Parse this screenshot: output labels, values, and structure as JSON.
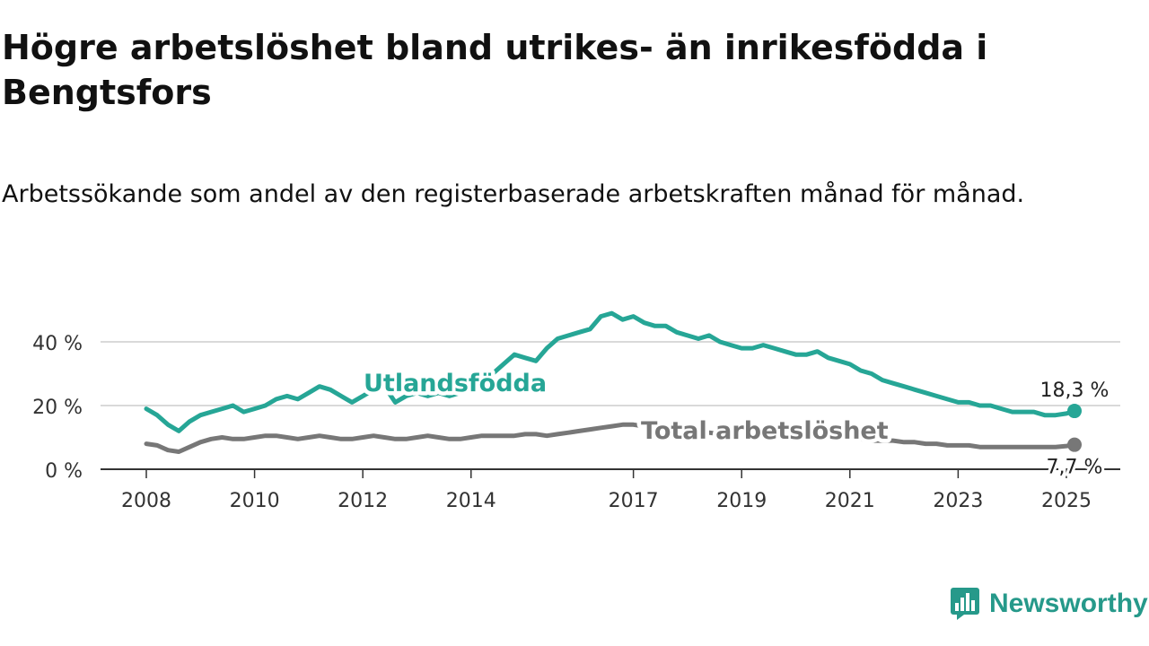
{
  "title": "Högre arbetslöshet bland utrikes- än inrikesfödda i Bengtsfors",
  "subtitle": "Arbetssökande som andel av den registerbaserade arbetskraften månad för månad.",
  "brand": {
    "name": "Newsworthy",
    "icon": "newsworthy-logo-icon"
  },
  "colors": {
    "foreign": "#26a696",
    "total": "#777777",
    "axis": "#333333",
    "grid": "#d9d9d9",
    "brand": "#26998a"
  },
  "chart_data": {
    "type": "line",
    "xlabel": "",
    "ylabel": "",
    "ylim": [
      0,
      55
    ],
    "grid": true,
    "legend": "inline labels",
    "x_tick_labels": [
      "2008",
      "2010",
      "2012",
      "2014",
      "2017",
      "2019",
      "2021",
      "2023",
      "2025"
    ],
    "y_ticks": [
      0,
      20,
      40
    ],
    "y_tick_labels": [
      "0 %",
      "20 %",
      "40 %"
    ],
    "series": [
      {
        "name": "Utlandsfödda",
        "end_label": "18,3 %",
        "x": [
          2008.0,
          2008.2,
          2008.4,
          2008.6,
          2008.8,
          2009.0,
          2009.2,
          2009.4,
          2009.6,
          2009.8,
          2010.0,
          2010.2,
          2010.4,
          2010.6,
          2010.8,
          2011.0,
          2011.2,
          2011.4,
          2011.6,
          2011.8,
          2012.0,
          2012.2,
          2012.4,
          2012.6,
          2012.8,
          2013.0,
          2013.2,
          2013.4,
          2013.6,
          2013.8,
          2014.0,
          2014.2,
          2014.4,
          2014.6,
          2014.8,
          2015.0,
          2015.2,
          2015.4,
          2015.6,
          2015.8,
          2016.0,
          2016.2,
          2016.4,
          2016.6,
          2016.8,
          2017.0,
          2017.2,
          2017.4,
          2017.6,
          2017.8,
          2018.0,
          2018.2,
          2018.4,
          2018.6,
          2018.8,
          2019.0,
          2019.2,
          2019.4,
          2019.6,
          2019.8,
          2020.0,
          2020.2,
          2020.4,
          2020.6,
          2020.8,
          2021.0,
          2021.2,
          2021.4,
          2021.6,
          2021.8,
          2022.0,
          2022.2,
          2022.4,
          2022.6,
          2022.8,
          2023.0,
          2023.2,
          2023.4,
          2023.6,
          2023.8,
          2024.0,
          2024.2,
          2024.4,
          2024.6,
          2024.8,
          2025.0,
          2025.15
        ],
        "values": [
          19,
          17,
          14,
          12,
          15,
          17,
          18,
          19,
          20,
          18,
          19,
          20,
          22,
          23,
          22,
          24,
          26,
          25,
          23,
          21,
          23,
          25,
          26,
          21,
          23,
          24,
          23,
          24,
          23,
          24,
          25,
          27,
          30,
          33,
          36,
          35,
          34,
          38,
          41,
          42,
          43,
          44,
          48,
          49,
          47,
          48,
          46,
          45,
          45,
          43,
          42,
          41,
          42,
          40,
          39,
          38,
          38,
          39,
          38,
          37,
          36,
          36,
          37,
          35,
          34,
          33,
          31,
          30,
          28,
          27,
          26,
          25,
          24,
          23,
          22,
          21,
          21,
          20,
          20,
          19,
          18,
          18,
          18,
          17,
          17,
          17.5,
          18.3
        ]
      },
      {
        "name": "Total arbetslöshet",
        "end_label": "7,7 %",
        "x": [
          2008.0,
          2008.2,
          2008.4,
          2008.6,
          2008.8,
          2009.0,
          2009.2,
          2009.4,
          2009.6,
          2009.8,
          2010.0,
          2010.2,
          2010.4,
          2010.6,
          2010.8,
          2011.0,
          2011.2,
          2011.4,
          2011.6,
          2011.8,
          2012.0,
          2012.2,
          2012.4,
          2012.6,
          2012.8,
          2013.0,
          2013.2,
          2013.4,
          2013.6,
          2013.8,
          2014.0,
          2014.2,
          2014.4,
          2014.6,
          2014.8,
          2015.0,
          2015.2,
          2015.4,
          2015.6,
          2015.8,
          2016.0,
          2016.2,
          2016.4,
          2016.6,
          2016.8,
          2017.0,
          2017.2,
          2017.4,
          2017.6,
          2017.8,
          2018.0,
          2018.2,
          2018.4,
          2018.6,
          2018.8,
          2019.0,
          2019.2,
          2019.4,
          2019.6,
          2019.8,
          2020.0,
          2020.2,
          2020.4,
          2020.6,
          2020.8,
          2021.0,
          2021.2,
          2021.4,
          2021.6,
          2021.8,
          2022.0,
          2022.2,
          2022.4,
          2022.6,
          2022.8,
          2023.0,
          2023.2,
          2023.4,
          2023.6,
          2023.8,
          2024.0,
          2024.2,
          2024.4,
          2024.6,
          2024.8,
          2025.0,
          2025.15
        ],
        "values": [
          8,
          7.5,
          6,
          5.5,
          7,
          8.5,
          9.5,
          10,
          9.5,
          9.5,
          10,
          10.5,
          10.5,
          10,
          9.5,
          10,
          10.5,
          10,
          9.5,
          9.5,
          10,
          10.5,
          10,
          9.5,
          9.5,
          10,
          10.5,
          10,
          9.5,
          9.5,
          10,
          10.5,
          10.5,
          10.5,
          10.5,
          11,
          11,
          10.5,
          11,
          11.5,
          12,
          12.5,
          13,
          13.5,
          14,
          14,
          13.5,
          13,
          12.5,
          12,
          12,
          11.5,
          11.5,
          11,
          11,
          10.5,
          10.5,
          10.5,
          10.5,
          10,
          10,
          10,
          10,
          9.5,
          9.5,
          9.5,
          9.5,
          9,
          9,
          9,
          8.5,
          8.5,
          8,
          8,
          7.5,
          7.5,
          7.5,
          7,
          7,
          7,
          7,
          7,
          7,
          7,
          7,
          7.3,
          7.7
        ]
      }
    ]
  }
}
